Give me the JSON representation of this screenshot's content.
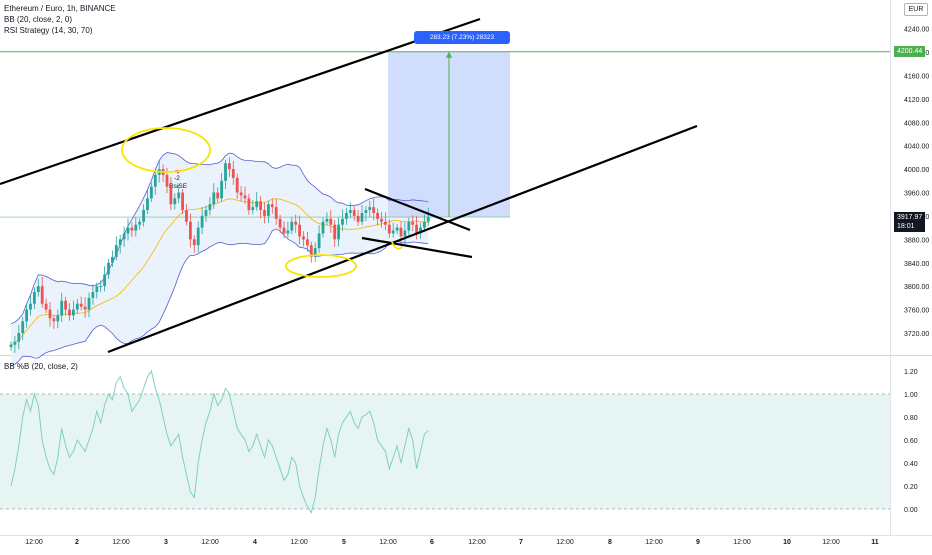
{
  "legend": {
    "symbol": "Ethereum / Euro, 1h, BINANCE",
    "bb": "BB (20, close, 2, 0)",
    "strategy": "RSI Strategy (14, 30, 70)",
    "bbpct": "BB %B (20, close, 2)"
  },
  "currency_badge": "EUR",
  "current_price": "3917.97",
  "countdown": "18:01",
  "target_price": "4200.44",
  "measure_label": "283.23 (7.23%) 28323",
  "annotation": {
    "signal_count": "-2",
    "signal_name": "RsiSE"
  },
  "colors": {
    "bull": "#26a69a",
    "bear": "#ef5350",
    "bb_band": "#5b5bd6",
    "bb_basis": "#f5b700",
    "bb_fill": "#e8f1fb",
    "pctb_line": "#7fcfc2",
    "pctb_fill": "#e6f5f1",
    "measure_fill": "#c9d7fb",
    "target_line": "#4caf50",
    "circle": "#f5e600",
    "trendline": "#000000"
  },
  "chart_data": [
    {
      "type": "candlestick",
      "title": "Ethereum / Euro, 1h, BINANCE",
      "ylim": [
        3680,
        4280
      ],
      "y_ticks": [
        4240,
        4200,
        4160,
        4120,
        4080,
        4040,
        4000,
        3960,
        3920,
        3880,
        3840,
        3800,
        3760,
        3720
      ],
      "y_tick_labels": [
        "4240.00",
        "4200.00",
        "4160.00",
        "4120.00",
        "4080.00",
        "4040.00",
        "4000.00",
        "3960.00",
        "3920.00",
        "3880.00",
        "3840.00",
        "3800.00",
        "3760.00",
        "3720.00"
      ],
      "x_tick_labels": [
        "12:00",
        "2",
        "12:00",
        "3",
        "12:00",
        "4",
        "12:00",
        "5",
        "12:00",
        "6",
        "12:00",
        "7",
        "12:00",
        "8",
        "12:00",
        "9",
        "12:00",
        "10",
        "12:00",
        "11"
      ],
      "bars_shown": 108,
      "closes": [
        3700,
        3705,
        3720,
        3740,
        3760,
        3770,
        3790,
        3800,
        3770,
        3760,
        3745,
        3740,
        3750,
        3775,
        3760,
        3750,
        3760,
        3770,
        3765,
        3760,
        3780,
        3790,
        3800,
        3800,
        3820,
        3840,
        3850,
        3870,
        3880,
        3890,
        3900,
        3895,
        3905,
        3910,
        3930,
        3950,
        3970,
        3990,
        4000,
        3990,
        3970,
        3940,
        3950,
        3960,
        3930,
        3910,
        3880,
        3870,
        3900,
        3920,
        3930,
        3940,
        3960,
        3950,
        3980,
        4010,
        4000,
        3985,
        3960,
        3955,
        3950,
        3930,
        3935,
        3945,
        3930,
        3920,
        3940,
        3935,
        3915,
        3900,
        3890,
        3895,
        3910,
        3905,
        3885,
        3880,
        3870,
        3850,
        3865,
        3890,
        3910,
        3915,
        3905,
        3880,
        3905,
        3915,
        3925,
        3930,
        3920,
        3910,
        3925,
        3930,
        3935,
        3925,
        3915,
        3910,
        3905,
        3890,
        3895,
        3900,
        3885,
        3895,
        3910,
        3905,
        3890,
        3900,
        3910,
        3917.97
      ],
      "target_price": 4200.44,
      "current_price": 3917.97,
      "measure": {
        "price_change": 283.23,
        "percent": 7.23,
        "value": 28323
      }
    },
    {
      "type": "line",
      "title": "BB %B (20, close, 2)",
      "ylim": [
        -0.05,
        1.25
      ],
      "y_ticks": [
        1.2,
        1.0,
        0.8,
        0.6,
        0.4,
        0.2,
        0.0
      ],
      "y_tick_labels": [
        "1.20",
        "1.00",
        "0.80",
        "0.60",
        "0.40",
        "0.20",
        "0.00"
      ],
      "band": [
        0,
        1
      ],
      "values": [
        0.2,
        0.35,
        0.55,
        0.8,
        0.95,
        0.85,
        1.0,
        0.9,
        0.6,
        0.45,
        0.35,
        0.3,
        0.45,
        0.7,
        0.55,
        0.45,
        0.5,
        0.6,
        0.55,
        0.5,
        0.6,
        0.7,
        0.85,
        0.75,
        0.9,
        1.0,
        0.95,
        1.1,
        1.15,
        1.05,
        1.0,
        0.85,
        0.9,
        0.95,
        1.05,
        1.15,
        1.2,
        1.05,
        0.95,
        0.8,
        0.65,
        0.55,
        0.6,
        0.65,
        0.45,
        0.3,
        0.15,
        0.1,
        0.4,
        0.6,
        0.75,
        0.85,
        1.0,
        0.9,
        0.95,
        1.05,
        1.0,
        0.85,
        0.7,
        0.65,
        0.6,
        0.5,
        0.55,
        0.65,
        0.55,
        0.45,
        0.6,
        0.55,
        0.45,
        0.35,
        0.25,
        0.3,
        0.45,
        0.4,
        0.2,
        0.1,
        0.02,
        -0.03,
        0.1,
        0.35,
        0.55,
        0.7,
        0.6,
        0.45,
        0.65,
        0.75,
        0.8,
        0.85,
        0.75,
        0.7,
        0.8,
        0.82,
        0.85,
        0.75,
        0.6,
        0.55,
        0.5,
        0.35,
        0.45,
        0.55,
        0.4,
        0.55,
        0.7,
        0.6,
        0.35,
        0.5,
        0.65,
        0.68
      ]
    }
  ]
}
